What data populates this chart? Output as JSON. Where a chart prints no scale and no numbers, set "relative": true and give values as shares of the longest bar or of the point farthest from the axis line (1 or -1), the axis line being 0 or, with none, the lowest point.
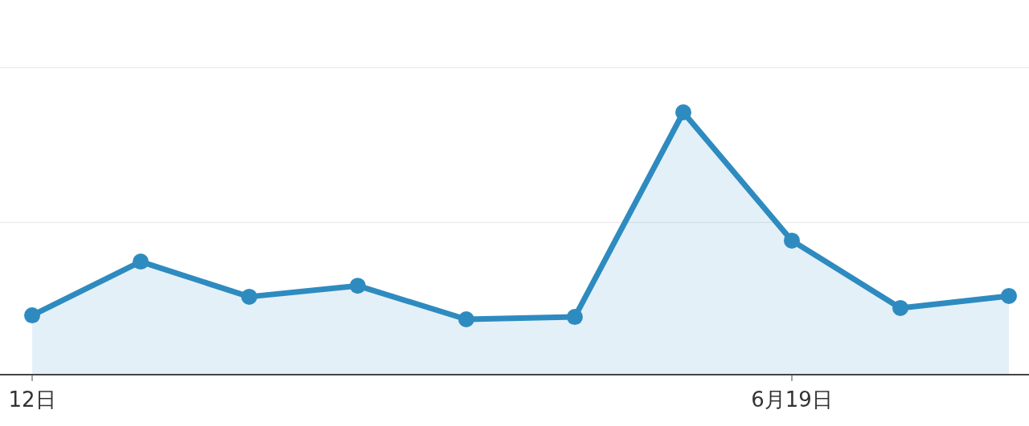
{
  "chart_data": {
    "type": "area",
    "relative": true,
    "categories": [
      "12日",
      null,
      null,
      null,
      null,
      null,
      null,
      "6月19日",
      null,
      null
    ],
    "series": [
      {
        "color": "#2e8bc0",
        "values": [
          0.226,
          0.431,
          0.297,
          0.339,
          0.211,
          0.22,
          1,
          0.511,
          0.254,
          0.3
        ]
      }
    ],
    "ref_lines": [
      {
        "axis": "y",
        "value": 0.58,
        "color": "#e6e6e6"
      },
      {
        "axis": "y",
        "value": 1.17,
        "color": "#e6e6e6"
      }
    ],
    "marker": "circle"
  }
}
